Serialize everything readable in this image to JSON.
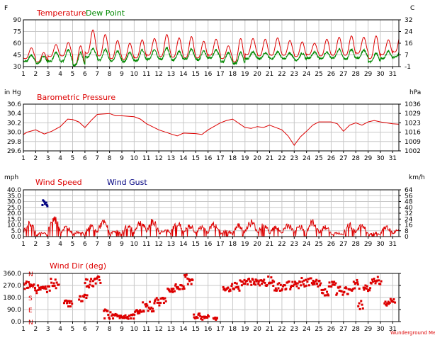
{
  "colors": {
    "primary": "#dd0000",
    "secondary": "#008800",
    "gust": "#000080",
    "grid": "#c8c8c8",
    "frame": "#000000"
  },
  "watermark": "Wunderground Metar",
  "chart_data": [
    {
      "type": "line",
      "labels": {
        "title1": "Temperature",
        "title2": "Dew Point",
        "unit_left": "F",
        "unit_right": "C"
      },
      "x": [
        1,
        31.5
      ],
      "xticks": [
        "1",
        "2",
        "3",
        "4",
        "5",
        "6",
        "7",
        "8",
        "9",
        "10",
        "11",
        "12",
        "13",
        "14",
        "15",
        "16",
        "17",
        "18",
        "19",
        "20",
        "21",
        "22",
        "23",
        "24",
        "25",
        "26",
        "27",
        "28",
        "29",
        "30",
        "31"
      ],
      "yticks_left": [
        "90",
        "75",
        "60",
        "45",
        "30"
      ],
      "yticks_right": [
        "32",
        "24",
        "16",
        "7",
        "-1"
      ],
      "ylim": [
        30,
        100
      ],
      "legend": [
        "Temperature",
        "Dew Point"
      ],
      "series": [
        {
          "name": "Temperature",
          "color": "#dd0000",
          "daily_min": [
            42,
            37,
            45,
            46,
            32,
            50,
            46,
            42,
            41,
            43,
            47,
            45,
            44,
            43,
            43,
            47,
            42,
            37,
            48,
            46,
            47,
            47,
            45,
            48,
            46,
            47,
            47,
            50,
            42,
            48,
            52
          ],
          "daily_max": [
            58,
            51,
            63,
            66,
            61,
            85,
            78,
            69,
            65,
            70,
            72,
            78,
            73,
            75,
            68,
            71,
            61,
            72,
            72,
            71,
            73,
            69,
            67,
            65,
            71,
            74,
            76,
            74,
            76,
            70,
            80
          ]
        },
        {
          "name": "Dew Point",
          "color": "#008800",
          "daily_min": [
            38,
            35,
            38,
            38,
            32,
            44,
            40,
            39,
            38,
            39,
            41,
            41,
            40,
            41,
            40,
            43,
            37,
            34,
            42,
            42,
            42,
            42,
            40,
            43,
            42,
            43,
            41,
            43,
            37,
            42,
            44
          ],
          "daily_max": [
            47,
            46,
            52,
            55,
            51,
            57,
            56,
            53,
            51,
            55,
            56,
            58,
            53,
            56,
            54,
            55,
            51,
            51,
            52,
            51,
            52,
            50,
            50,
            52,
            52,
            56,
            56,
            55,
            50,
            53,
            52
          ]
        }
      ]
    },
    {
      "type": "line",
      "labels": {
        "title": "Barometric Pressure",
        "unit_left": "in Hg",
        "unit_right": "hPa"
      },
      "x": [
        1,
        31.5
      ],
      "xticks": [
        "1",
        "2",
        "3",
        "4",
        "5",
        "6",
        "7",
        "8",
        "9",
        "10",
        "11",
        "12",
        "13",
        "14",
        "15",
        "16",
        "17",
        "18",
        "19",
        "20",
        "21",
        "22",
        "23",
        "24",
        "25",
        "26",
        "27",
        "28",
        "29",
        "30",
        "31"
      ],
      "yticks_left": [
        "30.6",
        "30.4",
        "30.2",
        "30.0",
        "29.8",
        "29.6"
      ],
      "yticks_right": [
        "1036",
        "1029",
        "1023",
        "1016",
        "1009",
        "1002"
      ],
      "ylim": [
        29.6,
        30.6
      ],
      "series": [
        {
          "name": "Barometric Pressure",
          "color": "#dd0000",
          "x": [
            1,
            1.3,
            2,
            2.7,
            3.3,
            4,
            4.6,
            5,
            5.5,
            6,
            6.5,
            7,
            8,
            8.5,
            9,
            10,
            10.5,
            11,
            12,
            13,
            13.5,
            14,
            15,
            15.5,
            16,
            17,
            17.5,
            18,
            19,
            19.5,
            20,
            20.5,
            21,
            22,
            22.5,
            23,
            23.5,
            24,
            24.5,
            25,
            26,
            26.5,
            27,
            27.5,
            28,
            28.5,
            29,
            29.5,
            30,
            31,
            31.5
          ],
          "y": [
            29.95,
            30.0,
            30.05,
            29.96,
            30.02,
            30.12,
            30.28,
            30.27,
            30.22,
            30.1,
            30.25,
            30.38,
            30.4,
            30.35,
            30.35,
            30.33,
            30.28,
            30.18,
            30.05,
            29.96,
            29.92,
            29.98,
            29.97,
            29.95,
            30.05,
            30.2,
            30.25,
            30.28,
            30.1,
            30.08,
            30.12,
            30.1,
            30.15,
            30.05,
            29.92,
            29.72,
            29.9,
            30.02,
            30.15,
            30.22,
            30.22,
            30.18,
            30.02,
            30.15,
            30.2,
            30.15,
            30.22,
            30.25,
            30.22,
            30.18,
            30.17
          ]
        }
      ]
    },
    {
      "type": "line",
      "labels": {
        "title1": "Wind Speed",
        "title2": "Wind Gust",
        "unit_left": "mph",
        "unit_right": "km/h"
      },
      "x": [
        1,
        31.5
      ],
      "xticks": [
        "1",
        "2",
        "3",
        "4",
        "5",
        "6",
        "7",
        "8",
        "9",
        "10",
        "11",
        "12",
        "13",
        "14",
        "15",
        "16",
        "17",
        "18",
        "19",
        "20",
        "21",
        "22",
        "23",
        "24",
        "25",
        "26",
        "27",
        "28",
        "29",
        "30",
        "31"
      ],
      "yticks_left": [
        "40.0",
        "35.0",
        "30.0",
        "25.0",
        "20.0",
        "15.0",
        "10.0",
        "5.0",
        "0.0"
      ],
      "yticks_right": [
        "64",
        "56",
        "48",
        "40",
        "32",
        "24",
        "16",
        "8",
        "0"
      ],
      "ylim": [
        0,
        40
      ],
      "legend": [
        "Wind Speed",
        "Wind Gust"
      ],
      "series": [
        {
          "name": "Wind Speed",
          "color": "#dd0000",
          "daily_max": [
            14,
            4,
            19,
            10,
            5,
            11,
            15,
            6,
            11,
            15,
            16,
            7,
            14,
            11,
            10,
            14,
            6,
            12,
            15,
            12,
            10,
            12,
            11,
            15,
            10,
            4,
            12,
            11,
            4,
            10,
            8
          ]
        },
        {
          "name": "Wind Gust",
          "color": "#000080",
          "points": [
            [
              2.55,
              27
            ],
            [
              2.6,
              31
            ],
            [
              2.7,
              30
            ],
            [
              2.75,
              28
            ],
            [
              2.85,
              29
            ],
            [
              2.9,
              27
            ],
            [
              2.95,
              26
            ]
          ]
        }
      ]
    },
    {
      "type": "scatter",
      "labels": {
        "title": "Wind Dir (deg)"
      },
      "x": [
        1,
        31.5
      ],
      "xticks": [
        "1",
        "2",
        "3",
        "4",
        "5",
        "6",
        "7",
        "8",
        "9",
        "10",
        "11",
        "12",
        "13",
        "14",
        "15",
        "16",
        "17",
        "18",
        "19",
        "20",
        "21",
        "22",
        "23",
        "24",
        "25",
        "26",
        "27",
        "28",
        "29",
        "30",
        "31"
      ],
      "yticks_left": [
        "360.0",
        "270.0",
        "180.0",
        "90.0",
        "0.0"
      ],
      "compass": [
        "N",
        "W",
        "S",
        "E",
        "N"
      ],
      "ylim": [
        0,
        360
      ],
      "series": [
        {
          "name": "Wind Dir",
          "color": "#dd0000",
          "clusters": [
            [
              1,
              1.6,
              240,
              300
            ],
            [
              1.6,
              2.2,
              210,
              290
            ],
            [
              2.2,
              3.2,
              220,
              270
            ],
            [
              3.2,
              3.9,
              250,
              320
            ],
            [
              4.3,
              5,
              110,
              160
            ],
            [
              5.5,
              6.2,
              150,
              200
            ],
            [
              6,
              6.8,
              250,
              320
            ],
            [
              6.8,
              7.3,
              280,
              340
            ],
            [
              7.5,
              8.2,
              20,
              90
            ],
            [
              8.2,
              10,
              20,
              60
            ],
            [
              10,
              10.6,
              50,
              90
            ],
            [
              10.6,
              11.6,
              70,
              150
            ],
            [
              11.6,
              12.6,
              120,
              180
            ],
            [
              12.7,
              13.3,
              220,
              260
            ],
            [
              13.3,
              14.1,
              240,
              290
            ],
            [
              14.1,
              14.8,
              280,
              350
            ],
            [
              14.8,
              15.6,
              10,
              60
            ],
            [
              15.6,
              16.1,
              20,
              50
            ],
            [
              16.4,
              16.8,
              10,
              30
            ],
            [
              17.2,
              17.8,
              220,
              260
            ],
            [
              17.8,
              18.6,
              230,
              290
            ],
            [
              18.6,
              19.5,
              270,
              320
            ],
            [
              19.5,
              20.6,
              270,
              320
            ],
            [
              20.6,
              21.4,
              260,
              340
            ],
            [
              21.4,
              22.4,
              230,
              290
            ],
            [
              22.4,
              23.4,
              240,
              300
            ],
            [
              23.4,
              24.4,
              250,
              330
            ],
            [
              24.4,
              25.2,
              260,
              320
            ],
            [
              25.2,
              25.8,
              190,
              250
            ],
            [
              25.8,
              26.4,
              260,
              300
            ],
            [
              26.4,
              27.1,
              190,
              260
            ],
            [
              27.1,
              27.8,
              200,
              270
            ],
            [
              27.8,
              28.3,
              240,
              320
            ],
            [
              28.2,
              28.6,
              90,
              160
            ],
            [
              28.6,
              29.2,
              220,
              270
            ],
            [
              29.2,
              30.1,
              280,
              340
            ],
            [
              30.3,
              30.8,
              110,
              160
            ],
            [
              30.8,
              31.2,
              140,
              170
            ]
          ]
        }
      ]
    }
  ]
}
